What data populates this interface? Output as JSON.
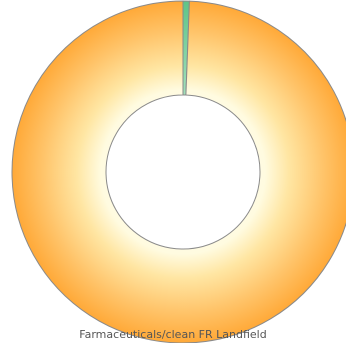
{
  "chart_data": {
    "type": "pie",
    "subtype": "donut",
    "title": "",
    "categories": [
      "Green segment",
      "Orange segment"
    ],
    "values": [
      0.6,
      99.4
    ],
    "colors": [
      "#7fd1a2",
      "#ffb347"
    ],
    "legend_text": "Farmaceuticals/clean FR Landfield",
    "legend": "bottom"
  }
}
